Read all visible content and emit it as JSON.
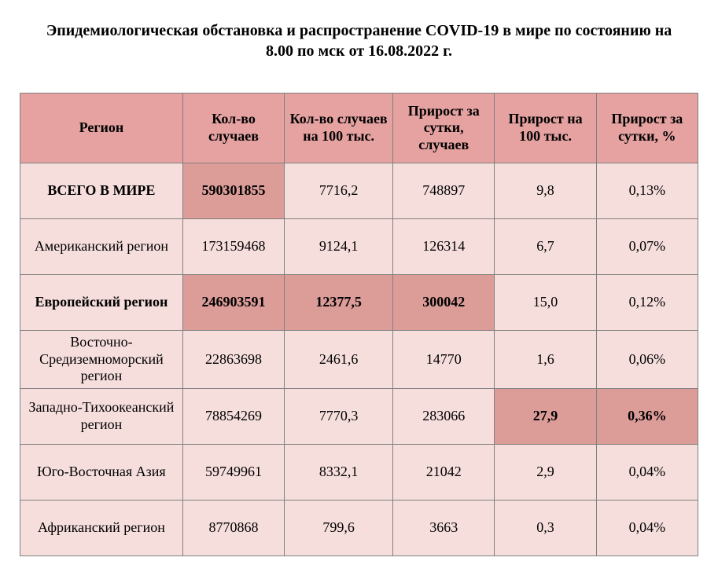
{
  "title": "Эпидемиологическая обстановка и распространение COVID-19 в мире по состоянию на 8.00 по мск от 16.08.2022 г.",
  "table": {
    "type": "table",
    "header_bg": "#e5a2a0",
    "row_bg": "#f6dedd",
    "highlight_bg": "#dc9c98",
    "border_color": "#808080",
    "columns": [
      "Регион",
      "Кол-во случаев",
      "Кол-во случаев на 100 тыс.",
      "Прирост за сутки, случаев",
      "Прирост на 100 тыс.",
      "Прирост за сутки, %"
    ],
    "rows": [
      {
        "cells": [
          "ВСЕГО В МИРЕ",
          "590301855",
          "7716,2",
          "748897",
          "9,8",
          "0,13%"
        ],
        "bold": [
          true,
          true,
          false,
          false,
          false,
          false
        ],
        "highlight": [
          false,
          true,
          false,
          false,
          false,
          false
        ]
      },
      {
        "cells": [
          "Американский регион",
          "173159468",
          "9124,1",
          "126314",
          "6,7",
          "0,07%"
        ],
        "bold": [
          false,
          false,
          false,
          false,
          false,
          false
        ],
        "highlight": [
          false,
          false,
          false,
          false,
          false,
          false
        ]
      },
      {
        "cells": [
          "Европейский регион",
          "246903591",
          "12377,5",
          "300042",
          "15,0",
          "0,12%"
        ],
        "bold": [
          true,
          true,
          true,
          true,
          false,
          false
        ],
        "highlight": [
          false,
          true,
          true,
          true,
          false,
          false
        ]
      },
      {
        "cells": [
          "Восточно-Средиземноморский регион",
          "22863698",
          "2461,6",
          "14770",
          "1,6",
          "0,06%"
        ],
        "bold": [
          false,
          false,
          false,
          false,
          false,
          false
        ],
        "highlight": [
          false,
          false,
          false,
          false,
          false,
          false
        ]
      },
      {
        "cells": [
          "Западно-Тихоокеанский регион",
          "78854269",
          "7770,3",
          "283066",
          "27,9",
          "0,36%"
        ],
        "bold": [
          false,
          false,
          false,
          false,
          true,
          true
        ],
        "highlight": [
          false,
          false,
          false,
          false,
          true,
          true
        ]
      },
      {
        "cells": [
          "Юго-Восточная Азия",
          "59749961",
          "8332,1",
          "21042",
          "2,9",
          "0,04%"
        ],
        "bold": [
          false,
          false,
          false,
          false,
          false,
          false
        ],
        "highlight": [
          false,
          false,
          false,
          false,
          false,
          false
        ]
      },
      {
        "cells": [
          "Африканский регион",
          "8770868",
          "799,6",
          "3663",
          "0,3",
          "0,04%"
        ],
        "bold": [
          false,
          false,
          false,
          false,
          false,
          false
        ],
        "highlight": [
          false,
          false,
          false,
          false,
          false,
          false
        ]
      }
    ]
  }
}
